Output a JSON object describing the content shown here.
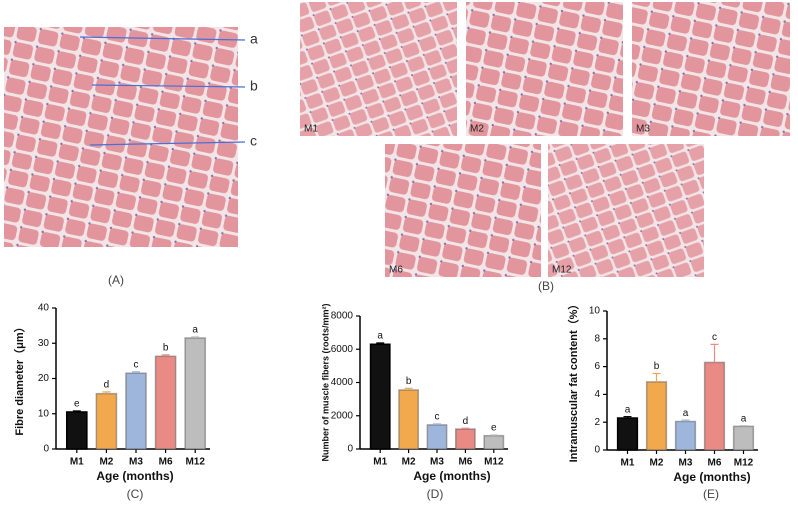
{
  "histology": {
    "panel_a": {
      "label": "(A)",
      "arrows": [
        "a",
        "b",
        "c"
      ]
    },
    "panel_b": {
      "label": "(B)",
      "images": [
        "M1",
        "M2",
        "M3",
        "M6",
        "M12"
      ]
    }
  },
  "chart_data": [
    {
      "type": "bar",
      "panel_label": "(C)",
      "y_label": "Fibre diameter（μm）",
      "x_label": "Age (months)",
      "categories": [
        "M1",
        "M2",
        "M3",
        "M6",
        "M12"
      ],
      "values": [
        10.5,
        15.7,
        21.5,
        26.3,
        31.5
      ],
      "errors": [
        0.3,
        0.5,
        0.4,
        0.4,
        0.3
      ],
      "annotations": [
        "e",
        "d",
        "c",
        "b",
        "a"
      ],
      "colors": [
        "#111111",
        "#f2a94e",
        "#9fb6dc",
        "#ea8a84",
        "#bdbdbd"
      ],
      "ylim": [
        0,
        40
      ],
      "yticks": [
        0,
        10,
        20,
        30,
        40
      ]
    },
    {
      "type": "bar",
      "panel_label": "(D)",
      "y_label": "Number of muscle fibers (roots/mm²)",
      "x_label": "Age (months)",
      "categories": [
        "M1",
        "M2",
        "M3",
        "M6",
        "M12"
      ],
      "values": [
        6300,
        3550,
        1450,
        1200,
        800
      ],
      "errors": [
        80,
        100,
        60,
        50,
        40
      ],
      "annotations": [
        "a",
        "b",
        "c",
        "d",
        "e"
      ],
      "colors": [
        "#111111",
        "#f2a94e",
        "#9fb6dc",
        "#ea8a84",
        "#bdbdbd"
      ],
      "ylim": [
        0,
        8000
      ],
      "yticks": [
        0,
        2000,
        4000,
        6000,
        8000
      ]
    },
    {
      "type": "bar",
      "panel_label": "(E)",
      "y_label": "Intramuscular fat content（%）",
      "x_label": "Age (months)",
      "categories": [
        "M1",
        "M2",
        "M3",
        "M6",
        "M12"
      ],
      "values": [
        2.3,
        4.9,
        2.05,
        6.3,
        1.7
      ],
      "errors": [
        0.1,
        0.6,
        0.1,
        1.3,
        0.05
      ],
      "annotations": [
        "a",
        "b",
        "a",
        "c",
        "a"
      ],
      "colors": [
        "#111111",
        "#f2a94e",
        "#9fb6dc",
        "#ea8a84",
        "#bdbdbd"
      ],
      "ylim": [
        0,
        10
      ],
      "yticks": [
        0,
        2,
        4,
        6,
        8,
        10
      ]
    }
  ]
}
